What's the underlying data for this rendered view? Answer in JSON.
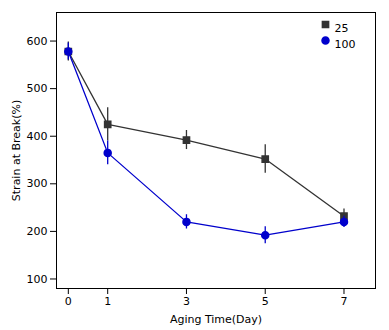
{
  "chart_data": {
    "type": "line",
    "xlabel": "Aging Time(Day)",
    "ylabel": "Strain at Break(%)",
    "x": [
      0,
      1,
      3,
      5,
      7
    ],
    "series": [
      {
        "name": "25",
        "color": "#333333",
        "marker": "square",
        "values": [
          578,
          425,
          392,
          352,
          232
        ],
        "yerr": [
          20,
          35,
          20,
          30,
          15
        ]
      },
      {
        "name": "100",
        "color": "#0000cc",
        "marker": "circle",
        "values": [
          578,
          365,
          220,
          192,
          220
        ],
        "yerr": [
          18,
          25,
          15,
          18,
          12
        ]
      }
    ],
    "xlim": [
      -0.3,
      7.8
    ],
    "ylim": [
      80,
      660
    ],
    "xticks": [
      0,
      1,
      3,
      5,
      7
    ],
    "yticks": [
      100,
      200,
      300,
      400,
      500,
      600
    ],
    "grid": false,
    "legend": "upper right"
  }
}
